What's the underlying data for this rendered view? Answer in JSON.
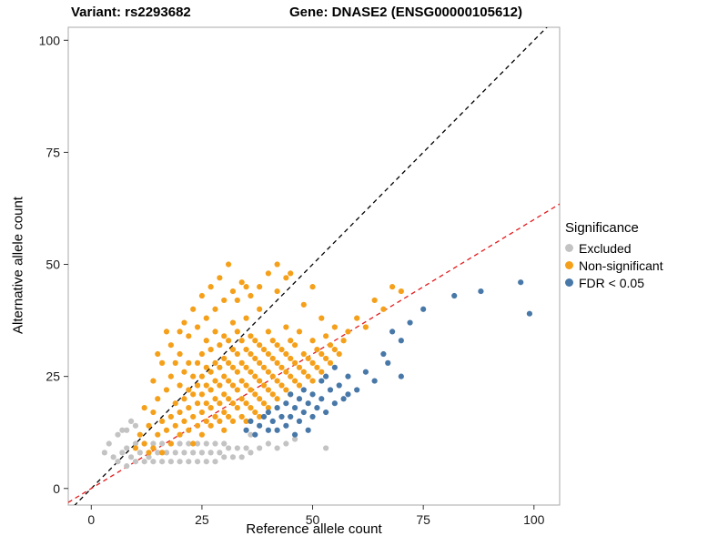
{
  "header": {
    "title_left": "Variant: rs2293682",
    "title_right": "Gene: DNASE2 (ENSG00000105612)"
  },
  "axes": {
    "x_label": "Reference allele count",
    "y_label": "Alternative allele count",
    "x_ticks": [
      0,
      25,
      50,
      75,
      100
    ],
    "y_ticks": [
      0,
      25,
      50,
      75,
      100
    ]
  },
  "legend": {
    "title": "Significance",
    "items": [
      {
        "label": "Excluded",
        "color": "#C3C3C3"
      },
      {
        "label": "Non-significant",
        "color": "#F5A01A"
      },
      {
        "label": "FDR < 0.05",
        "color": "#4878A8"
      }
    ]
  },
  "chart_data": {
    "type": "scatter",
    "title": "Variant: rs2293682 — Gene: DNASE2 (ENSG00000105612)",
    "xlabel": "Reference allele count",
    "ylabel": "Alternative allele count",
    "xlim": [
      -5.2,
      105.8
    ],
    "ylim": [
      -3.7,
      102.9
    ],
    "grid": false,
    "legend_position": "right",
    "lines": [
      {
        "name": "identity-line",
        "slope": 1,
        "intercept": 0,
        "color": "#000000",
        "style": "dashed"
      },
      {
        "name": "fit-line",
        "slope": 0.6,
        "intercept": 0,
        "color": "#E41A1C",
        "style": "dashed"
      }
    ],
    "series": [
      {
        "name": "Excluded",
        "color": "#C3C3C3",
        "points": [
          [
            3,
            8
          ],
          [
            4,
            10
          ],
          [
            5,
            7
          ],
          [
            6,
            6
          ],
          [
            6,
            12
          ],
          [
            7,
            8
          ],
          [
            7,
            13
          ],
          [
            8,
            5
          ],
          [
            8,
            9
          ],
          [
            8,
            13
          ],
          [
            9,
            7
          ],
          [
            9,
            15
          ],
          [
            10,
            6
          ],
          [
            10,
            10
          ],
          [
            10,
            14
          ],
          [
            11,
            8
          ],
          [
            12,
            6
          ],
          [
            12,
            10
          ],
          [
            13,
            7
          ],
          [
            14,
            6
          ],
          [
            14,
            10
          ],
          [
            15,
            8
          ],
          [
            16,
            6
          ],
          [
            16,
            10
          ],
          [
            17,
            8
          ],
          [
            18,
            6
          ],
          [
            18,
            10
          ],
          [
            19,
            8
          ],
          [
            20,
            6
          ],
          [
            20,
            10
          ],
          [
            21,
            8
          ],
          [
            22,
            6
          ],
          [
            22,
            10
          ],
          [
            23,
            8
          ],
          [
            24,
            6
          ],
          [
            24,
            10
          ],
          [
            25,
            8
          ],
          [
            26,
            6
          ],
          [
            26,
            10
          ],
          [
            27,
            8
          ],
          [
            28,
            6
          ],
          [
            28,
            10
          ],
          [
            29,
            8
          ],
          [
            30,
            7
          ],
          [
            30,
            10
          ],
          [
            31,
            9
          ],
          [
            32,
            7
          ],
          [
            33,
            9
          ],
          [
            34,
            7
          ],
          [
            35,
            9
          ],
          [
            36,
            8
          ],
          [
            36,
            12
          ],
          [
            38,
            9
          ],
          [
            40,
            10
          ],
          [
            42,
            9
          ],
          [
            44,
            10
          ],
          [
            46,
            11
          ],
          [
            53,
            9
          ]
        ]
      },
      {
        "name": "Non-significant",
        "color": "#F5A01A",
        "points": [
          [
            12,
            10
          ],
          [
            13,
            14
          ],
          [
            13,
            8
          ],
          [
            14,
            9
          ],
          [
            14,
            17
          ],
          [
            15,
            12
          ],
          [
            15,
            20
          ],
          [
            15,
            30
          ],
          [
            16,
            15
          ],
          [
            16,
            8
          ],
          [
            16,
            28
          ],
          [
            17,
            13
          ],
          [
            17,
            22
          ],
          [
            17,
            35
          ],
          [
            18,
            16
          ],
          [
            18,
            10
          ],
          [
            18,
            25
          ],
          [
            18,
            32
          ],
          [
            19,
            14
          ],
          [
            19,
            19
          ],
          [
            19,
            28
          ],
          [
            20,
            12
          ],
          [
            20,
            17
          ],
          [
            20,
            23
          ],
          [
            20,
            30
          ],
          [
            20,
            35
          ],
          [
            21,
            15
          ],
          [
            21,
            20
          ],
          [
            21,
            26
          ],
          [
            21,
            37
          ],
          [
            22,
            13
          ],
          [
            22,
            18
          ],
          [
            22,
            22
          ],
          [
            22,
            28
          ],
          [
            22,
            34
          ],
          [
            23,
            16
          ],
          [
            23,
            21
          ],
          [
            23,
            25
          ],
          [
            23,
            10
          ],
          [
            23,
            40
          ],
          [
            24,
            14
          ],
          [
            24,
            19
          ],
          [
            24,
            23
          ],
          [
            24,
            28
          ],
          [
            24,
            36
          ],
          [
            25,
            12
          ],
          [
            25,
            17
          ],
          [
            25,
            21
          ],
          [
            25,
            25
          ],
          [
            25,
            30
          ],
          [
            25,
            43
          ],
          [
            26,
            15
          ],
          [
            26,
            19
          ],
          [
            26,
            23
          ],
          [
            26,
            27
          ],
          [
            26,
            33
          ],
          [
            26,
            38
          ],
          [
            27,
            14
          ],
          [
            27,
            18
          ],
          [
            27,
            22
          ],
          [
            27,
            26
          ],
          [
            27,
            31
          ],
          [
            27,
            45
          ],
          [
            28,
            16
          ],
          [
            28,
            20
          ],
          [
            28,
            24
          ],
          [
            28,
            28
          ],
          [
            28,
            35
          ],
          [
            28,
            40
          ],
          [
            29,
            15
          ],
          [
            29,
            19
          ],
          [
            29,
            23
          ],
          [
            29,
            27
          ],
          [
            29,
            32
          ],
          [
            29,
            47
          ],
          [
            30,
            13
          ],
          [
            30,
            17
          ],
          [
            30,
            21
          ],
          [
            30,
            25
          ],
          [
            30,
            29
          ],
          [
            30,
            34
          ],
          [
            30,
            42
          ],
          [
            31,
            16
          ],
          [
            31,
            20
          ],
          [
            31,
            24
          ],
          [
            31,
            28
          ],
          [
            31,
            33
          ],
          [
            31,
            50
          ],
          [
            32,
            15
          ],
          [
            32,
            19
          ],
          [
            32,
            23
          ],
          [
            32,
            27
          ],
          [
            32,
            31
          ],
          [
            32,
            37
          ],
          [
            32,
            44
          ],
          [
            33,
            18
          ],
          [
            33,
            22
          ],
          [
            33,
            26
          ],
          [
            33,
            30
          ],
          [
            33,
            35
          ],
          [
            33,
            42
          ],
          [
            34,
            16
          ],
          [
            34,
            20
          ],
          [
            34,
            24
          ],
          [
            34,
            28
          ],
          [
            34,
            33
          ],
          [
            34,
            46
          ],
          [
            35,
            15
          ],
          [
            35,
            19
          ],
          [
            35,
            23
          ],
          [
            35,
            27
          ],
          [
            35,
            31
          ],
          [
            35,
            38
          ],
          [
            35,
            45
          ],
          [
            36,
            18
          ],
          [
            36,
            22
          ],
          [
            36,
            26
          ],
          [
            36,
            30
          ],
          [
            36,
            34
          ],
          [
            36,
            43
          ],
          [
            37,
            17
          ],
          [
            37,
            21
          ],
          [
            37,
            25
          ],
          [
            37,
            29
          ],
          [
            37,
            33
          ],
          [
            38,
            16
          ],
          [
            38,
            20
          ],
          [
            38,
            24
          ],
          [
            38,
            28
          ],
          [
            38,
            32
          ],
          [
            38,
            40
          ],
          [
            38,
            45
          ],
          [
            39,
            19
          ],
          [
            39,
            23
          ],
          [
            39,
            27
          ],
          [
            39,
            31
          ],
          [
            40,
            18
          ],
          [
            40,
            22
          ],
          [
            40,
            26
          ],
          [
            40,
            30
          ],
          [
            40,
            35
          ],
          [
            40,
            48
          ],
          [
            41,
            21
          ],
          [
            41,
            25
          ],
          [
            41,
            29
          ],
          [
            41,
            33
          ],
          [
            42,
            20
          ],
          [
            42,
            24
          ],
          [
            42,
            28
          ],
          [
            42,
            32
          ],
          [
            42,
            44
          ],
          [
            42,
            50
          ],
          [
            43,
            23
          ],
          [
            43,
            27
          ],
          [
            43,
            31
          ],
          [
            44,
            22
          ],
          [
            44,
            26
          ],
          [
            44,
            30
          ],
          [
            44,
            36
          ],
          [
            44,
            47
          ],
          [
            45,
            21
          ],
          [
            45,
            25
          ],
          [
            45,
            29
          ],
          [
            45,
            33
          ],
          [
            45,
            48
          ],
          [
            46,
            24
          ],
          [
            46,
            28
          ],
          [
            46,
            32
          ],
          [
            47,
            23
          ],
          [
            47,
            27
          ],
          [
            47,
            35
          ],
          [
            48,
            26
          ],
          [
            48,
            30
          ],
          [
            48,
            41
          ],
          [
            49,
            25
          ],
          [
            49,
            29
          ],
          [
            50,
            24
          ],
          [
            50,
            28
          ],
          [
            50,
            33
          ],
          [
            50,
            45
          ],
          [
            51,
            27
          ],
          [
            51,
            31
          ],
          [
            52,
            26
          ],
          [
            52,
            30
          ],
          [
            52,
            38
          ],
          [
            53,
            29
          ],
          [
            53,
            34
          ],
          [
            54,
            28
          ],
          [
            54,
            32
          ],
          [
            55,
            31
          ],
          [
            55,
            36
          ],
          [
            56,
            30
          ],
          [
            57,
            33
          ],
          [
            58,
            35
          ],
          [
            60,
            38
          ],
          [
            62,
            36
          ],
          [
            64,
            42
          ],
          [
            66,
            40
          ],
          [
            68,
            45
          ],
          [
            70,
            44
          ],
          [
            11,
            12
          ],
          [
            10,
            9
          ],
          [
            12,
            18
          ],
          [
            14,
            24
          ]
        ]
      },
      {
        "name": "FDR < 0.05",
        "color": "#4878A8",
        "points": [
          [
            35,
            13
          ],
          [
            36,
            15
          ],
          [
            37,
            12
          ],
          [
            38,
            14
          ],
          [
            39,
            16
          ],
          [
            40,
            13
          ],
          [
            40,
            17
          ],
          [
            41,
            15
          ],
          [
            42,
            13
          ],
          [
            42,
            18
          ],
          [
            43,
            16
          ],
          [
            44,
            14
          ],
          [
            44,
            19
          ],
          [
            45,
            16
          ],
          [
            45,
            21
          ],
          [
            46,
            12
          ],
          [
            46,
            18
          ],
          [
            47,
            15
          ],
          [
            47,
            20
          ],
          [
            48,
            17
          ],
          [
            48,
            22
          ],
          [
            49,
            13
          ],
          [
            49,
            19
          ],
          [
            50,
            16
          ],
          [
            50,
            21
          ],
          [
            51,
            18
          ],
          [
            52,
            20
          ],
          [
            52,
            24
          ],
          [
            53,
            17
          ],
          [
            53,
            25
          ],
          [
            54,
            22
          ],
          [
            55,
            19
          ],
          [
            55,
            27
          ],
          [
            56,
            23
          ],
          [
            57,
            20
          ],
          [
            58,
            21
          ],
          [
            58,
            25
          ],
          [
            60,
            22
          ],
          [
            62,
            26
          ],
          [
            64,
            24
          ],
          [
            66,
            30
          ],
          [
            67,
            28
          ],
          [
            68,
            35
          ],
          [
            70,
            25
          ],
          [
            70,
            33
          ],
          [
            72,
            37
          ],
          [
            75,
            40
          ],
          [
            82,
            43
          ],
          [
            88,
            44
          ],
          [
            97,
            46
          ],
          [
            99,
            39
          ]
        ]
      }
    ]
  }
}
